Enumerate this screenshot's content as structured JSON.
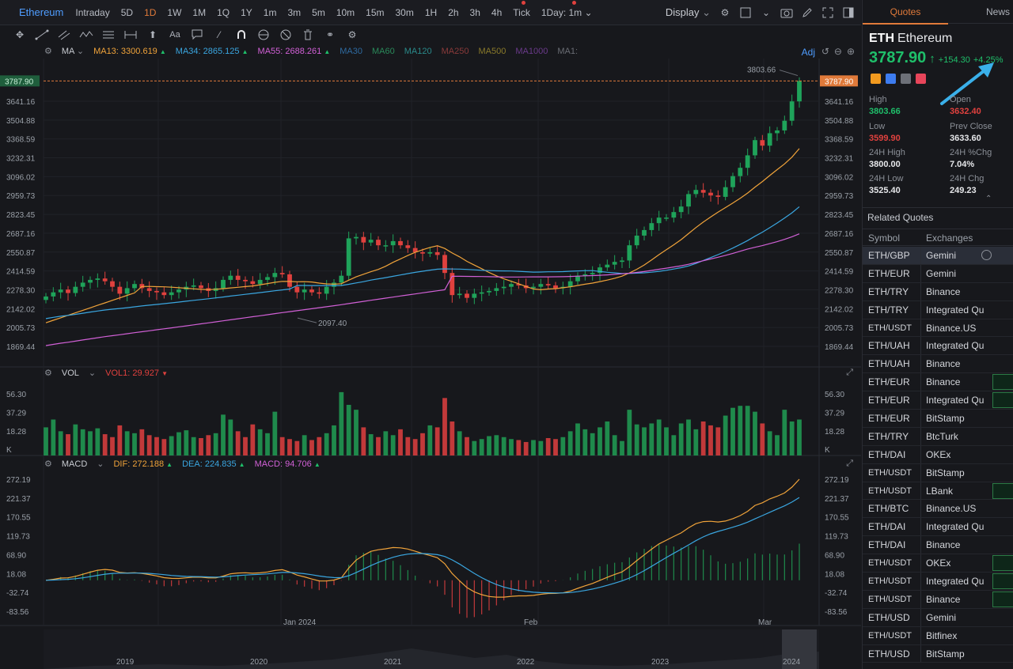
{
  "toolbar": {
    "symbol": "Ethereum",
    "timeframes": [
      "Intraday",
      "5D",
      "1D",
      "1W",
      "1M",
      "1Q",
      "1Y",
      "1m",
      "3m",
      "5m",
      "10m",
      "15m",
      "30m",
      "1H",
      "2h",
      "3h",
      "4h",
      "Tick",
      "1Day: 1m"
    ],
    "active_timeframe": "1D",
    "display_label": "Display",
    "adj_label": "Adj"
  },
  "legend": {
    "ma": [
      {
        "label": "MA",
        "value": "",
        "color": "#c9ccd2"
      },
      {
        "label": "MA13:",
        "value": "3300.619",
        "color": "#f0a33a"
      },
      {
        "label": "MA34:",
        "value": "2865.125",
        "color": "#3aa6e0"
      },
      {
        "label": "MA55:",
        "value": "2688.261",
        "color": "#d160d6"
      },
      {
        "label": "MA30",
        "value": "",
        "color": "#2e6aa0"
      },
      {
        "label": "MA60",
        "value": "",
        "color": "#2a8a5a"
      },
      {
        "label": "MA120",
        "value": "",
        "color": "#2a8a8a"
      },
      {
        "label": "MA250",
        "value": "",
        "color": "#8a3a3a"
      },
      {
        "label": "MA500",
        "value": "",
        "color": "#8a7a2a"
      },
      {
        "label": "MA1000",
        "value": "",
        "color": "#6a3a8a"
      },
      {
        "label": "MA1:",
        "value": "",
        "color": "#6a6d74"
      }
    ],
    "vol": {
      "label": "VOL",
      "vol1_label": "VOL1:",
      "vol1_value": "29.927"
    },
    "macd": {
      "label": "MACD",
      "dif_label": "DIF:",
      "dif_value": "272.188",
      "dea_label": "DEA:",
      "dea_value": "224.835",
      "macd_label": "MACD:",
      "macd_value": "94.706"
    }
  },
  "chart_data": {
    "type": "candlestick",
    "price_axis": [
      "3641.16",
      "3504.88",
      "3368.59",
      "3232.31",
      "3096.02",
      "2959.73",
      "2823.45",
      "2687.16",
      "2550.87",
      "2414.59",
      "2278.30",
      "2142.02",
      "2005.73",
      "1869.44"
    ],
    "last_price_tag": "3787.90",
    "high_annotation": "3803.66",
    "low_annotation": "2097.40",
    "volume_axis": [
      "56.30",
      "37.29",
      "18.28",
      "K"
    ],
    "macd_axis": [
      "272.19",
      "221.37",
      "170.55",
      "119.73",
      "68.90",
      "18.08",
      "-32.74",
      "-83.56"
    ],
    "time_labels": [
      "Jan 2024",
      "Feb",
      "Mar"
    ],
    "navigator_labels": [
      "2019",
      "2020",
      "2021",
      "2022",
      "2023",
      "2024"
    ],
    "closes": [
      2230,
      2260,
      2280,
      2255,
      2300,
      2330,
      2350,
      2360,
      2340,
      2300,
      2250,
      2290,
      2320,
      2290,
      2270,
      2260,
      2240,
      2260,
      2280,
      2300,
      2310,
      2290,
      2270,
      2290,
      2350,
      2380,
      2350,
      2340,
      2320,
      2350,
      2370,
      2400,
      2390,
      2300,
      2260,
      2280,
      2260,
      2250,
      2300,
      2330,
      2380,
      2650,
      2660,
      2620,
      2640,
      2600,
      2600,
      2630,
      2600,
      2580,
      2550,
      2540,
      2550,
      2530,
      2400,
      2240,
      2250,
      2220,
      2250,
      2260,
      2270,
      2290,
      2300,
      2320,
      2310,
      2290,
      2300,
      2320,
      2310,
      2290,
      2300,
      2340,
      2380,
      2390,
      2400,
      2440,
      2460,
      2480,
      2490,
      2600,
      2670,
      2710,
      2760,
      2800,
      2800,
      2840,
      2880,
      2970,
      3000,
      2980,
      2960,
      2950,
      3020,
      3100,
      3160,
      3250,
      3360,
      3320,
      3410,
      3430,
      3500,
      3640,
      3788
    ],
    "opens": [
      2205,
      2230,
      2260,
      2280,
      2255,
      2300,
      2330,
      2350,
      2360,
      2340,
      2300,
      2250,
      2290,
      2320,
      2290,
      2270,
      2260,
      2240,
      2260,
      2280,
      2300,
      2310,
      2290,
      2270,
      2290,
      2350,
      2380,
      2350,
      2340,
      2320,
      2350,
      2370,
      2400,
      2390,
      2300,
      2260,
      2280,
      2260,
      2250,
      2300,
      2330,
      2380,
      2650,
      2660,
      2620,
      2640,
      2600,
      2600,
      2630,
      2600,
      2580,
      2550,
      2540,
      2550,
      2530,
      2400,
      2240,
      2250,
      2220,
      2250,
      2260,
      2270,
      2290,
      2300,
      2320,
      2310,
      2290,
      2300,
      2320,
      2310,
      2290,
      2300,
      2340,
      2380,
      2390,
      2400,
      2440,
      2460,
      2480,
      2490,
      2600,
      2670,
      2710,
      2760,
      2800,
      2800,
      2840,
      2880,
      2970,
      3000,
      2980,
      2960,
      2950,
      3020,
      3100,
      3160,
      3250,
      3360,
      3320,
      3410,
      3430,
      3500,
      3640
    ],
    "volumes": [
      22,
      30,
      18,
      15,
      25,
      20,
      18,
      21,
      15,
      12,
      24,
      18,
      16,
      20,
      14,
      12,
      10,
      13,
      17,
      19,
      12,
      11,
      14,
      16,
      35,
      30,
      18,
      12,
      25,
      20,
      16,
      38,
      12,
      10,
      8,
      14,
      9,
      12,
      16,
      24,
      58,
      45,
      40,
      22,
      15,
      12,
      18,
      14,
      20,
      12,
      10,
      16,
      24,
      22,
      52,
      28,
      18,
      12,
      8,
      10,
      13,
      14,
      12,
      10,
      9,
      7,
      9,
      8,
      11,
      10,
      12,
      18,
      26,
      20,
      16,
      22,
      28,
      14,
      8,
      40,
      25,
      22,
      26,
      30,
      22,
      14,
      26,
      30,
      20,
      28,
      24,
      22,
      34,
      42,
      44,
      44,
      38,
      26,
      18,
      14,
      40,
      28,
      30
    ]
  },
  "panel": {
    "tabs": [
      "Quotes",
      "News"
    ],
    "ticker": "ETH",
    "name": "Ethereum",
    "price": "3787.90",
    "arrow": "↑",
    "change": "+154.30",
    "change_pct": "+4.25%",
    "stats": [
      {
        "label": "High",
        "value": "3803.66",
        "color": "#1fbf6a"
      },
      {
        "label": "Open",
        "value": "3632.40",
        "color": "#e0413e"
      },
      {
        "label": "Low",
        "value": "3599.90",
        "color": "#e0413e"
      },
      {
        "label": "Prev Close",
        "value": "3633.60",
        "color": "#e6e7ea"
      },
      {
        "label": "24H High",
        "value": "3800.00",
        "color": "#e6e7ea"
      },
      {
        "label": "24H %Chg",
        "value": "7.04%",
        "color": "#e6e7ea"
      },
      {
        "label": "24H Low",
        "value": "3525.40",
        "color": "#e6e7ea"
      },
      {
        "label": "24H Chg",
        "value": "249.23",
        "color": "#e6e7ea"
      }
    ],
    "related_title": "Related Quotes",
    "col_symbol": "Symbol",
    "col_exchanges": "Exchanges",
    "related": [
      {
        "symbol": "ETH/GBP",
        "exchange": "Gemini"
      },
      {
        "symbol": "ETH/EUR",
        "exchange": "Gemini"
      },
      {
        "symbol": "ETH/TRY",
        "exchange": "Binance"
      },
      {
        "symbol": "ETH/TRY",
        "exchange": "Integrated Qu"
      },
      {
        "symbol": "ETH/USDT",
        "exchange": "Binance.US"
      },
      {
        "symbol": "ETH/UAH",
        "exchange": "Integrated Qu"
      },
      {
        "symbol": "ETH/UAH",
        "exchange": "Binance"
      },
      {
        "symbol": "ETH/EUR",
        "exchange": "Binance"
      },
      {
        "symbol": "ETH/EUR",
        "exchange": "Integrated Qu"
      },
      {
        "symbol": "ETH/EUR",
        "exchange": "BitStamp"
      },
      {
        "symbol": "ETH/TRY",
        "exchange": "BtcTurk"
      },
      {
        "symbol": "ETH/DAI",
        "exchange": "OKEx"
      },
      {
        "symbol": "ETH/USDT",
        "exchange": "BitStamp"
      },
      {
        "symbol": "ETH/USDT",
        "exchange": "LBank"
      },
      {
        "symbol": "ETH/BTC",
        "exchange": "Binance.US"
      },
      {
        "symbol": "ETH/DAI",
        "exchange": "Integrated Qu"
      },
      {
        "symbol": "ETH/DAI",
        "exchange": "Binance"
      },
      {
        "symbol": "ETH/USDT",
        "exchange": "OKEx"
      },
      {
        "symbol": "ETH/USDT",
        "exchange": "Integrated Qu"
      },
      {
        "symbol": "ETH/USDT",
        "exchange": "Binance"
      },
      {
        "symbol": "ETH/USD",
        "exchange": "Gemini"
      },
      {
        "symbol": "ETH/USDT",
        "exchange": "Bitfinex"
      },
      {
        "symbol": "ETH/USD",
        "exchange": "BitStamp"
      }
    ]
  },
  "colors": {
    "up": "#1fa35a",
    "down": "#e0413e",
    "accent": "#e07a3a",
    "link": "#4f9dff"
  }
}
